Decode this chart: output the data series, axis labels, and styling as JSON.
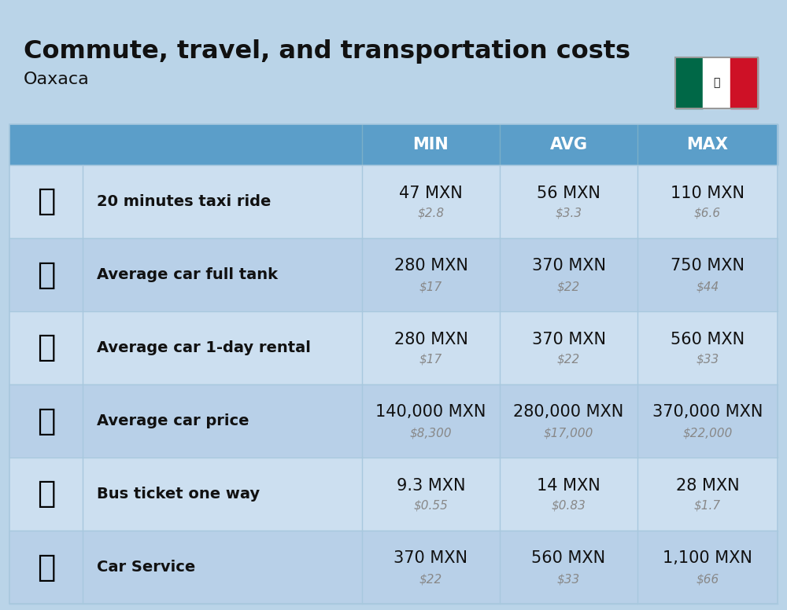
{
  "title": "Commute, travel, and transportation costs",
  "subtitle": "Oaxaca",
  "bg_color": "#bad4e8",
  "header_bg_color": "#5b9ec9",
  "header_text_color": "#ffffff",
  "row_bg_light": "#ccdff0",
  "row_bg_dark": "#b8d0e8",
  "label_color": "#111111",
  "value_color": "#111111",
  "usd_color": "#888888",
  "col_headers": [
    "MIN",
    "AVG",
    "MAX"
  ],
  "rows": [
    {
      "label": "20 minutes taxi ride",
      "min_mxn": "47 MXN",
      "min_usd": "$2.8",
      "avg_mxn": "56 MXN",
      "avg_usd": "$3.3",
      "max_mxn": "110 MXN",
      "max_usd": "$6.6"
    },
    {
      "label": "Average car full tank",
      "min_mxn": "280 MXN",
      "min_usd": "$17",
      "avg_mxn": "370 MXN",
      "avg_usd": "$22",
      "max_mxn": "750 MXN",
      "max_usd": "$44"
    },
    {
      "label": "Average car 1-day rental",
      "min_mxn": "280 MXN",
      "min_usd": "$17",
      "avg_mxn": "370 MXN",
      "avg_usd": "$22",
      "max_mxn": "560 MXN",
      "max_usd": "$33"
    },
    {
      "label": "Average car price",
      "min_mxn": "140,000 MXN",
      "min_usd": "$8,300",
      "avg_mxn": "280,000 MXN",
      "avg_usd": "$17,000",
      "max_mxn": "370,000 MXN",
      "max_usd": "$22,000"
    },
    {
      "label": "Bus ticket one way",
      "min_mxn": "9.3 MXN",
      "min_usd": "$0.55",
      "avg_mxn": "14 MXN",
      "avg_usd": "$0.83",
      "max_mxn": "28 MXN",
      "max_usd": "$1.7"
    },
    {
      "label": "Car Service",
      "min_mxn": "370 MXN",
      "min_usd": "$22",
      "avg_mxn": "560 MXN",
      "avg_usd": "$33",
      "max_mxn": "1,100 MXN",
      "max_usd": "$66"
    }
  ],
  "flag_colors": [
    "#006847",
    "#ffffff",
    "#ce1126"
  ],
  "icon_emojis": [
    "🚕",
    "⛽",
    "🚙",
    "🚗",
    "🚌",
    "🔧"
  ],
  "title_fontsize": 23,
  "subtitle_fontsize": 16,
  "header_fontsize": 15,
  "label_fontsize": 14,
  "value_fontsize": 15,
  "usd_fontsize": 11,
  "icon_fontsize": 28
}
